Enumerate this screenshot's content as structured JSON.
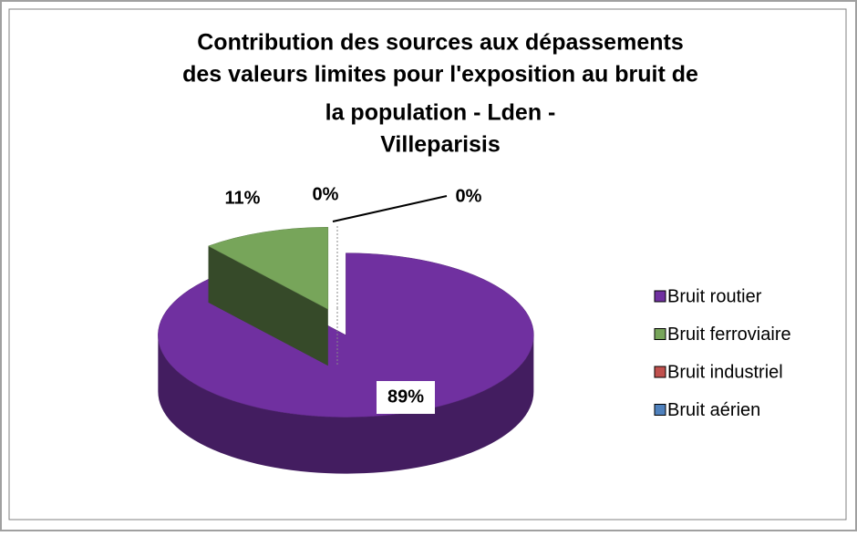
{
  "chart_data": {
    "type": "pie3d",
    "title": [
      "Contribution des sources aux dépassements",
      "des valeurs limites pour l'exposition au bruit de",
      "la population - Lden -",
      "Villeparisis"
    ],
    "categories": [
      "Bruit routier",
      "Bruit ferroviaire",
      "Bruit industriel",
      "Bruit aérien"
    ],
    "values": [
      89,
      11,
      0,
      0
    ],
    "value_labels": [
      "89%",
      "11%",
      "0%",
      "0%"
    ],
    "colors": [
      "#7030a0",
      "#77a55a",
      "#c0504d",
      "#4f81bd"
    ],
    "legend": "right"
  }
}
